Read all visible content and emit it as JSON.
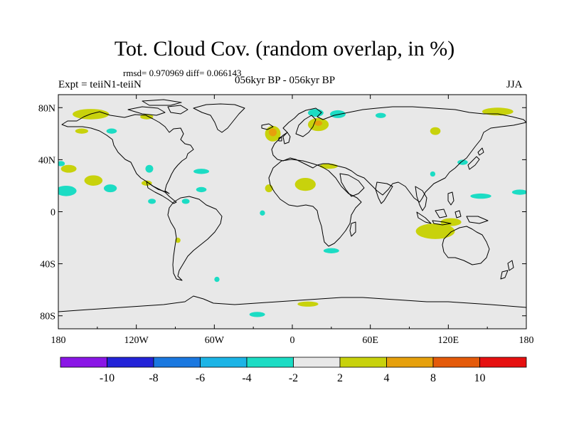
{
  "title": "Tot. Cloud Cov. (random overlap, in %)",
  "stats": "rmsd= 0.970969 diff= 0.066143",
  "experiment": "Expt = teiiN1-teiiN",
  "period": "056kyr BP - 056kyr BP",
  "season": "JJA",
  "map": {
    "projection": "cylindrical-equidistant",
    "lon_range": [
      -180,
      180
    ],
    "lat_range": [
      -90,
      90
    ],
    "x_ticks": [
      {
        "lon": -180,
        "label": "180"
      },
      {
        "lon": -120,
        "label": "120W"
      },
      {
        "lon": -60,
        "label": "60W"
      },
      {
        "lon": 0,
        "label": "0"
      },
      {
        "lon": 60,
        "label": "60E"
      },
      {
        "lon": 120,
        "label": "120E"
      },
      {
        "lon": 180,
        "label": "180"
      }
    ],
    "y_ticks": [
      {
        "lat": 80,
        "label": "80N"
      },
      {
        "lat": 40,
        "label": "40N"
      },
      {
        "lat": 0,
        "label": "0"
      },
      {
        "lat": -40,
        "label": "40S"
      },
      {
        "lat": -80,
        "label": "80S"
      }
    ],
    "background_color": "#e8e8e8",
    "coastline_color": "#000000"
  },
  "colorbar": {
    "colors": [
      "#8a16e6",
      "#2323d8",
      "#1a78e0",
      "#1cb4e6",
      "#1cdcc4",
      "#e8e8e8",
      "#c8d20c",
      "#e6a00c",
      "#e45a0a",
      "#e61010"
    ],
    "labels": [
      "-10",
      "-8",
      "-6",
      "-4",
      "-2",
      "2",
      "4",
      "8",
      "10"
    ]
  },
  "anomalies": [
    {
      "name": "north-pacific-arctic-positive",
      "lon": -155,
      "lat": 75,
      "rx": 14,
      "ry": 4,
      "level": "2 to 4"
    },
    {
      "name": "bering-positive",
      "lon": -162,
      "lat": 62,
      "rx": 5,
      "ry": 2,
      "level": "2 to 4"
    },
    {
      "name": "alaska-negative",
      "lon": -139,
      "lat": 62,
      "rx": 4,
      "ry": 2,
      "level": "-4 to -2"
    },
    {
      "name": "arctic-canada-positive",
      "lon": -112,
      "lat": 73,
      "rx": 5,
      "ry": 2,
      "level": "2 to 4"
    },
    {
      "name": "greenland-sea-negative",
      "lon": 18,
      "lat": 76,
      "rx": 6,
      "ry": 3,
      "level": "-4 to -2"
    },
    {
      "name": "barents-negative",
      "lon": 35,
      "lat": 75,
      "rx": 6,
      "ry": 3,
      "level": "-4 to -2"
    },
    {
      "name": "laptev-negative",
      "lon": 68,
      "lat": 74,
      "rx": 4,
      "ry": 2,
      "level": "-4 to -2"
    },
    {
      "name": "scandinavia-positive",
      "lon": 20,
      "lat": 67,
      "rx": 8,
      "ry": 5,
      "level": "2 to 4"
    },
    {
      "name": "scandinavia-strong-positive",
      "lon": 20,
      "lat": 68,
      "rx": 3,
      "ry": 2,
      "level": "4 to 8"
    },
    {
      "name": "north-atlantic-positive",
      "lon": -15,
      "lat": 60,
      "rx": 6,
      "ry": 6,
      "level": "2 to 4"
    },
    {
      "name": "north-atlantic-strong-positive",
      "lon": -15,
      "lat": 61,
      "rx": 3,
      "ry": 3,
      "level": "4 to 8"
    },
    {
      "name": "arctic-siberia-positive",
      "lon": 158,
      "lat": 77,
      "rx": 12,
      "ry": 3,
      "level": "2 to 4"
    },
    {
      "name": "siberia-positive",
      "lon": 110,
      "lat": 62,
      "rx": 4,
      "ry": 3,
      "level": "2 to 4"
    },
    {
      "name": "west-pacific-negative",
      "lon": -178,
      "lat": 37,
      "rx": 3,
      "ry": 2,
      "level": "-4 to -2"
    },
    {
      "name": "north-pacific-positive",
      "lon": -172,
      "lat": 33,
      "rx": 6,
      "ry": 3,
      "level": "2 to 4"
    },
    {
      "name": "west-atlantic-negative",
      "lon": -70,
      "lat": 31,
      "rx": 6,
      "ry": 2,
      "level": "-4 to -2"
    },
    {
      "name": "central-pacific-negative",
      "lon": -110,
      "lat": 33,
      "rx": 3,
      "ry": 3,
      "level": "-4 to -2"
    },
    {
      "name": "northeast-pacific-positive",
      "lon": -153,
      "lat": 24,
      "rx": 7,
      "ry": 4,
      "level": "2 to 4"
    },
    {
      "name": "northeast-pacific-negative",
      "lon": -140,
      "lat": 18,
      "rx": 5,
      "ry": 3,
      "level": "-4 to -2"
    },
    {
      "name": "pacific-sw-negative",
      "lon": -174,
      "lat": 16,
      "rx": 8,
      "ry": 4,
      "level": "-4 to -2"
    },
    {
      "name": "baja-positive",
      "lon": -112,
      "lat": 22,
      "rx": 4,
      "ry": 2,
      "level": "2 to 4"
    },
    {
      "name": "caribbean-negative",
      "lon": -70,
      "lat": 17,
      "rx": 4,
      "ry": 2,
      "level": "-4 to -2"
    },
    {
      "name": "central-america-negative",
      "lon": -82,
      "lat": 8,
      "rx": 3,
      "ry": 2,
      "level": "-4 to -2"
    },
    {
      "name": "middle-east-positive",
      "lon": 28,
      "lat": 35,
      "rx": 7,
      "ry": 2,
      "level": "2 to 4"
    },
    {
      "name": "sahara-positive",
      "lon": 10,
      "lat": 21,
      "rx": 8,
      "ry": 5,
      "level": "2 to 4"
    },
    {
      "name": "west-africa-positive",
      "lon": -18,
      "lat": 18,
      "rx": 3,
      "ry": 3,
      "level": "2 to 4"
    },
    {
      "name": "atlantic-negative",
      "lon": -23,
      "lat": -1,
      "rx": 2,
      "ry": 2,
      "level": "-4 to -2"
    },
    {
      "name": "indian-ocean-positive",
      "lon": 110,
      "lat": -15,
      "rx": 15,
      "ry": 6,
      "level": "2 to 4"
    },
    {
      "name": "indonesia-positive",
      "lon": 122,
      "lat": -8,
      "rx": 8,
      "ry": 3,
      "level": "2 to 4"
    },
    {
      "name": "madagascar-negative",
      "lon": 30,
      "lat": -30,
      "rx": 6,
      "ry": 2,
      "level": "-4 to -2"
    },
    {
      "name": "philippine-sea-negative",
      "lon": 145,
      "lat": 12,
      "rx": 8,
      "ry": 2,
      "level": "-4 to -2"
    },
    {
      "name": "west-pacific-far-negative",
      "lon": 175,
      "lat": 15,
      "rx": 6,
      "ry": 2,
      "level": "-4 to -2"
    },
    {
      "name": "southern-ocean-positive",
      "lon": 12,
      "lat": -71,
      "rx": 8,
      "ry": 2,
      "level": "2 to 4"
    },
    {
      "name": "southern-ocean-negative",
      "lon": -27,
      "lat": -79,
      "rx": 6,
      "ry": 2,
      "level": "-4 to -2"
    },
    {
      "name": "south-america-negative",
      "lon": -58,
      "lat": -52,
      "rx": 2,
      "ry": 2,
      "level": "-4 to -2"
    },
    {
      "name": "south-pacific-positive",
      "lon": -88,
      "lat": -22,
      "rx": 2,
      "ry": 2,
      "level": "2 to 4"
    },
    {
      "name": "east-pacific-negative",
      "lon": -108,
      "lat": 8,
      "rx": 3,
      "ry": 2,
      "level": "-4 to -2"
    },
    {
      "name": "japan-negative",
      "lon": 131,
      "lat": 38,
      "rx": 4,
      "ry": 2,
      "level": "-4 to -2"
    },
    {
      "name": "china-negative",
      "lon": 108,
      "lat": 29,
      "rx": 2,
      "ry": 2,
      "level": "-4 to -2"
    }
  ]
}
